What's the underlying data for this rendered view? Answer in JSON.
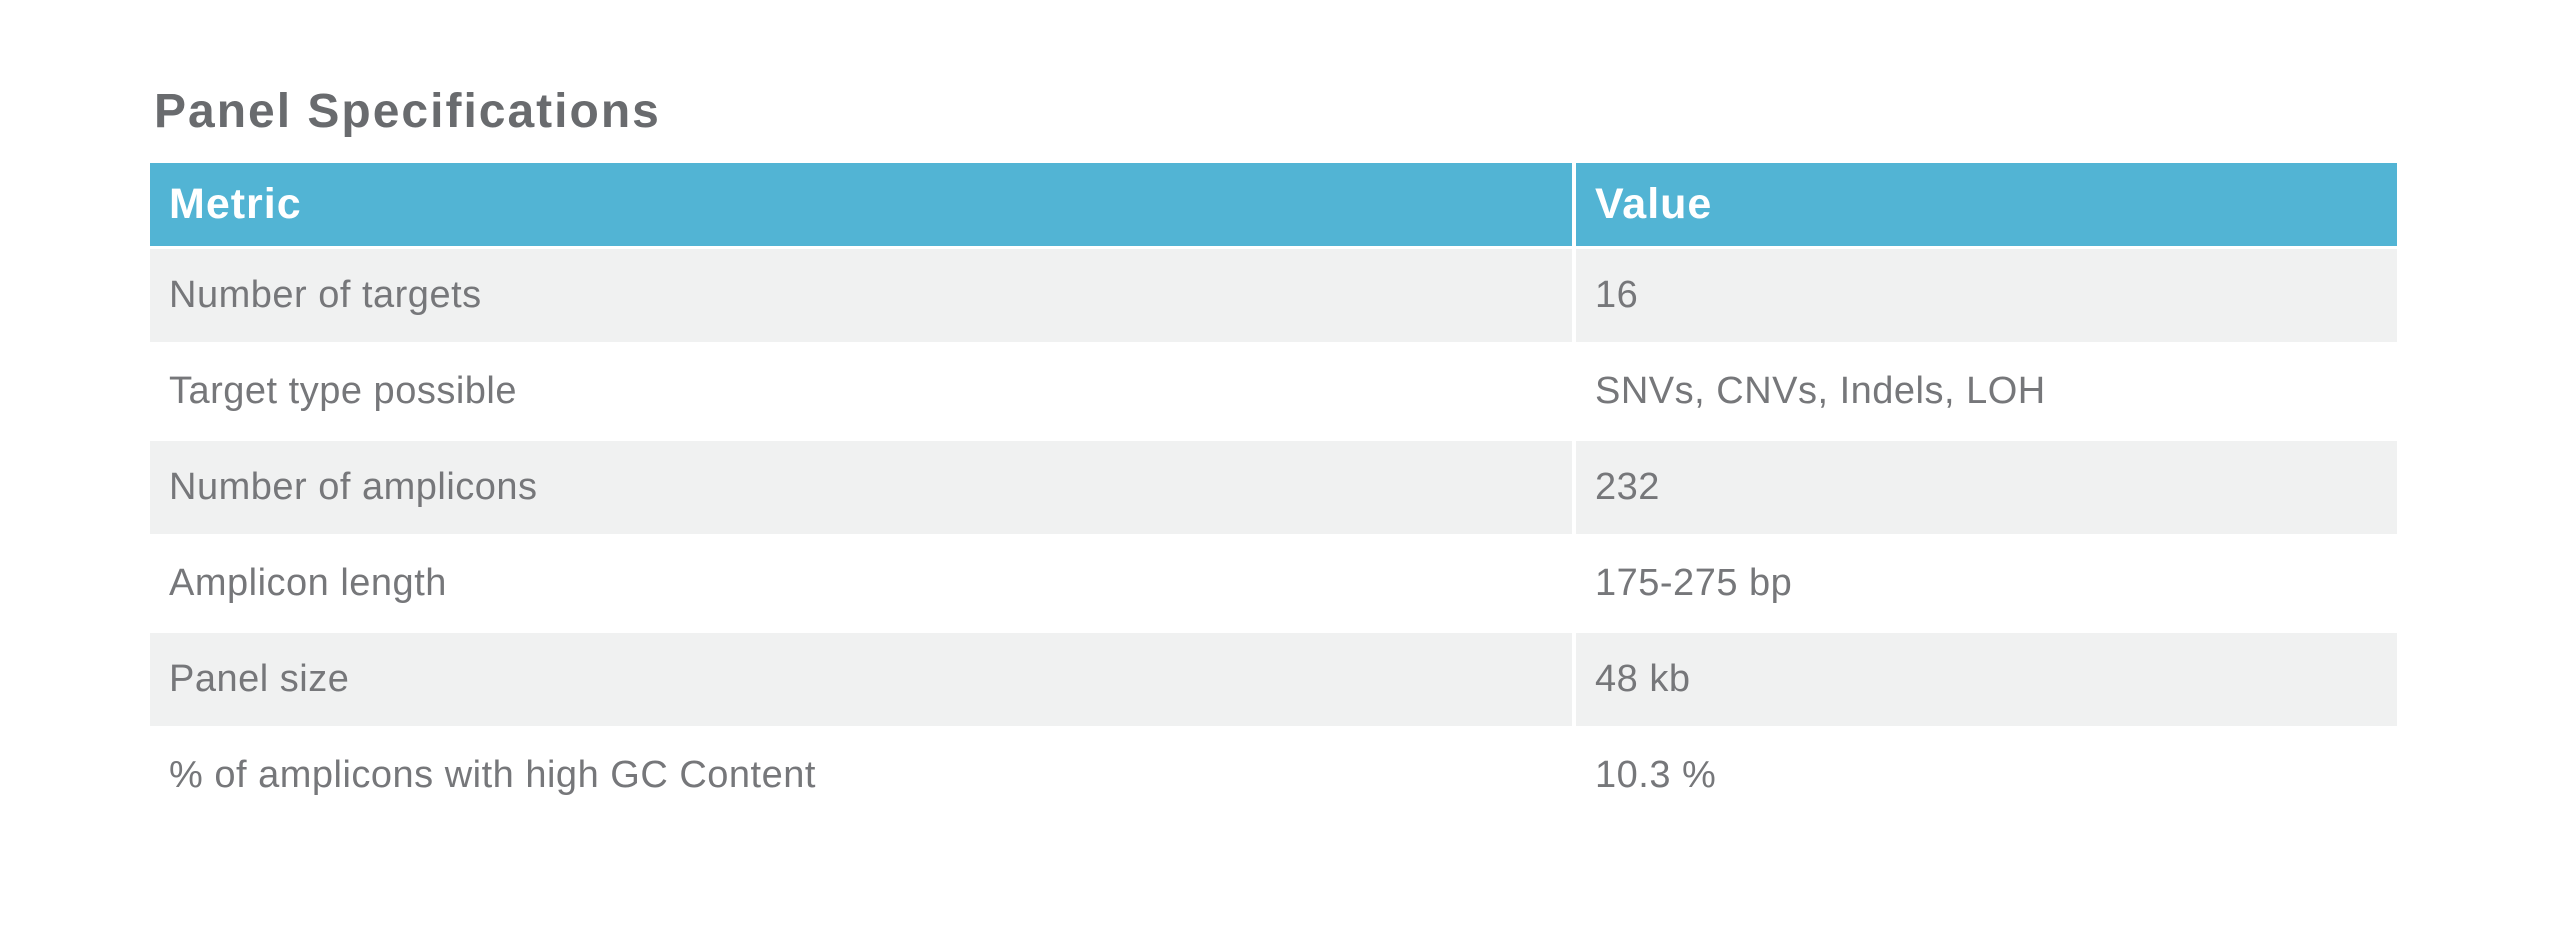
{
  "title": "Panel Specifications",
  "colors": {
    "header_bg": "#52b4d4",
    "header_text": "#ffffff",
    "row_alt_bg": "#f0f1f1",
    "body_text": "#76777a",
    "title_text": "#696b6e",
    "page_bg": "#ffffff"
  },
  "table": {
    "columns": [
      {
        "label": "Metric"
      },
      {
        "label": "Value"
      }
    ],
    "rows": [
      {
        "metric": "Number of targets",
        "value": "16"
      },
      {
        "metric": "Target type possible",
        "value": "SNVs, CNVs, Indels, LOH"
      },
      {
        "metric": "Number of amplicons",
        "value": "232"
      },
      {
        "metric": "Amplicon length",
        "value": "175-275 bp"
      },
      {
        "metric": "Panel size",
        "value": "48 kb"
      },
      {
        "metric": "% of amplicons with high GC Content",
        "value": "10.3 %"
      }
    ]
  }
}
